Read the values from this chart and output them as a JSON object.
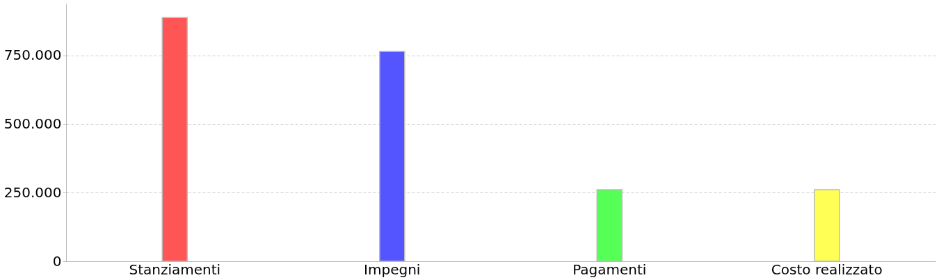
{
  "chart_data": {
    "type": "bar",
    "categories": [
      "Stanziamenti",
      "Impegni",
      "Pagamenti",
      "Costo realizzato"
    ],
    "values": [
      889000,
      765000,
      261000,
      261000
    ],
    "colors": [
      "#ff5555",
      "#5555ff",
      "#55ff55",
      "#ffff55"
    ],
    "ylim": [
      0,
      940000
    ],
    "yticks": [
      0,
      {
        "value": 250000,
        "label": "250.000"
      },
      {
        "value": 500000,
        "label": "500.000"
      },
      {
        "value": 750000,
        "label": "750.000"
      }
    ],
    "grid": "y"
  }
}
